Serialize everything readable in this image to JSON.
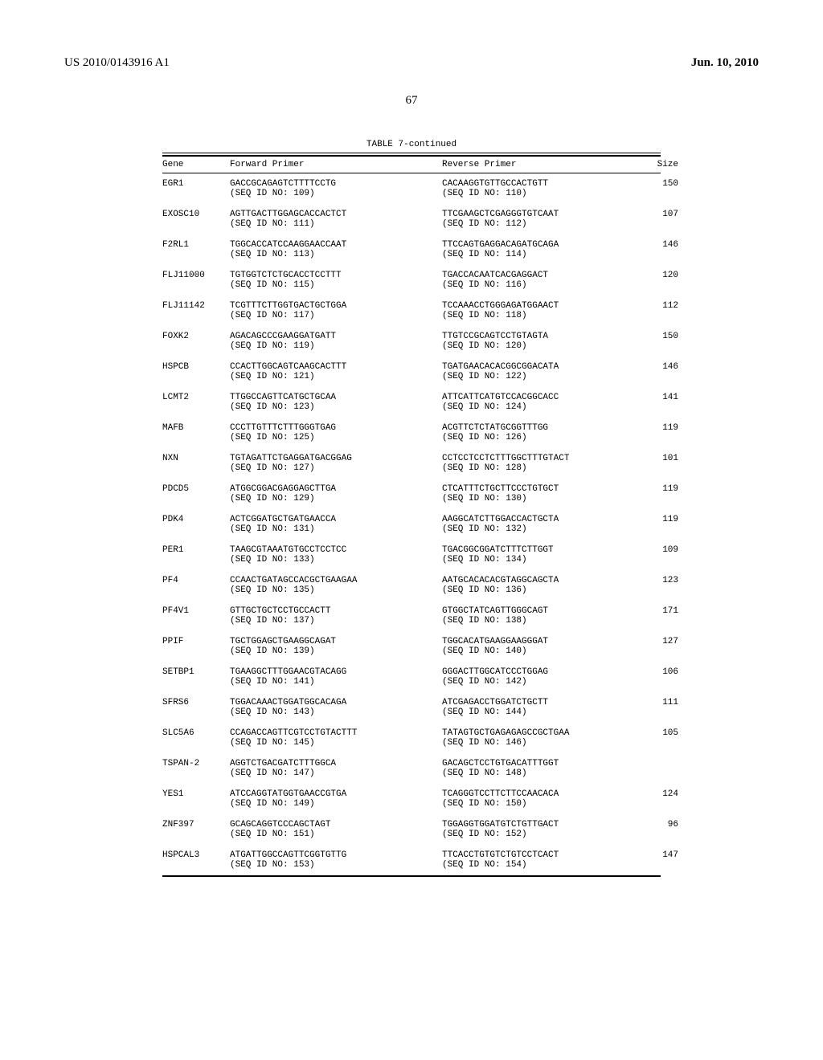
{
  "header": {
    "pub_number": "US 2010/0143916 A1",
    "pub_date": "Jun. 10, 2010"
  },
  "page_number": "67",
  "table": {
    "title": "TABLE 7-continued",
    "columns": {
      "gene": "Gene",
      "fwd": "Forward Primer",
      "rev": "Reverse Primer",
      "size": "Size"
    },
    "rows": [
      {
        "gene": "EGR1",
        "fwd_seq": "GACCGCAGAGTCTTTTCCTG",
        "fwd_id": "109",
        "rev_seq": "CACAAGGTGTTGCCACTGTT",
        "rev_id": "110",
        "size": "150"
      },
      {
        "gene": "EXOSC10",
        "fwd_seq": "AGTTGACTTGGAGCACCACTCT",
        "fwd_id": "111",
        "rev_seq": "TTCGAAGCTCGAGGGTGTCAAT",
        "rev_id": "112",
        "size": "107"
      },
      {
        "gene": "F2RL1",
        "fwd_seq": "TGGCACCATCCAAGGAACCAAT",
        "fwd_id": "113",
        "rev_seq": "TTCCAGTGAGGACAGATGCAGA",
        "rev_id": "114",
        "size": "146"
      },
      {
        "gene": "FLJ11000",
        "fwd_seq": "TGTGGTCTCTGCACCTCCTTT",
        "fwd_id": "115",
        "rev_seq": "TGACCACAATCACGAGGACT",
        "rev_id": "116",
        "size": "120"
      },
      {
        "gene": "FLJ11142",
        "fwd_seq": "TCGTTTCTTGGTGACTGCTGGA",
        "fwd_id": "117",
        "rev_seq": "TCCAAACCTGGGAGATGGAACT",
        "rev_id": "118",
        "size": "112"
      },
      {
        "gene": "FOXK2",
        "fwd_seq": "AGACAGCCCGAAGGATGATT",
        "fwd_id": "119",
        "rev_seq": "TTGTCCGCAGTCCTGTAGTA",
        "rev_id": "120",
        "size": "150"
      },
      {
        "gene": "HSPCB",
        "fwd_seq": "CCACTTGGCAGTCAAGCACTTT",
        "fwd_id": "121",
        "rev_seq": "TGATGAACACACGGCGGACATA",
        "rev_id": "122",
        "size": "146"
      },
      {
        "gene": "LCMT2",
        "fwd_seq": "TTGGCCAGTTCATGCTGCAA",
        "fwd_id": "123",
        "rev_seq": "ATTCATTCATGTCCACGGCACC",
        "rev_id": "124",
        "size": "141"
      },
      {
        "gene": "MAFB",
        "fwd_seq": "CCCTTGTTTCTTTGGGTGAG",
        "fwd_id": "125",
        "rev_seq": "ACGTTCTCTATGCGGTTTGG",
        "rev_id": "126",
        "size": "119"
      },
      {
        "gene": "NXN",
        "fwd_seq": "TGTAGATTCTGAGGATGACGGAG",
        "fwd_id": "127",
        "rev_seq": "CCTCCTCCTCTTTGGCTTTGTACT",
        "rev_id": "128",
        "size": "101"
      },
      {
        "gene": "PDCD5",
        "fwd_seq": "ATGGCGGACGAGGAGCTTGA",
        "fwd_id": "129",
        "rev_seq": "CTCATTTCTGCTTCCCTGTGCT",
        "rev_id": "130",
        "size": "119"
      },
      {
        "gene": "PDK4",
        "fwd_seq": "ACTCGGATGCTGATGAACCA",
        "fwd_id": "131",
        "rev_seq": "AAGGCATCTTGGACCACTGCTA",
        "rev_id": "132",
        "size": "119"
      },
      {
        "gene": "PER1",
        "fwd_seq": "TAAGCGTAAATGTGCCTCCTCC",
        "fwd_id": "133",
        "rev_seq": "TGACGGCGGATCTTTCTTGGT",
        "rev_id": "134",
        "size": "109"
      },
      {
        "gene": "PF4",
        "fwd_seq": "CCAACTGATAGCCACGCTGAAGAA",
        "fwd_id": "135",
        "rev_seq": "AATGCACACACGTAGGCAGCTA",
        "rev_id": "136",
        "size": "123"
      },
      {
        "gene": "PF4V1",
        "fwd_seq": "GTTGCTGCTCCTGCCACTT",
        "fwd_id": "137",
        "rev_seq": "GTGGCTATCAGTTGGGCAGT",
        "rev_id": "138",
        "size": "171"
      },
      {
        "gene": "PPIF",
        "fwd_seq": "TGCTGGAGCTGAAGGCAGAT",
        "fwd_id": "139",
        "rev_seq": "TGGCACATGAAGGAAGGGAT",
        "rev_id": "140",
        "size": "127"
      },
      {
        "gene": "SETBP1",
        "fwd_seq": "TGAAGGCTTTGGAACGTACAGG",
        "fwd_id": "141",
        "rev_seq": "GGGACTTGGCATCCCTGGAG",
        "rev_id": "142",
        "size": "106"
      },
      {
        "gene": "SFRS6",
        "fwd_seq": "TGGACAAACTGGATGGCACAGA",
        "fwd_id": "143",
        "rev_seq": "ATCGAGACCTGGATCTGCTT",
        "rev_id": "144",
        "size": "111"
      },
      {
        "gene": "SLC5A6",
        "fwd_seq": "CCAGACCAGTTCGTCCTGTACTTT",
        "fwd_id": "145",
        "rev_seq": "TATAGTGCTGAGAGAGCCGCTGAA",
        "rev_id": "146",
        "size": "105"
      },
      {
        "gene": "TSPAN-2",
        "fwd_seq": "AGGTCTGACGATCTTTGGCA",
        "fwd_id": "147",
        "rev_seq": "GACAGCTCCTGTGACATTTGGT",
        "rev_id": "148",
        "size": ""
      },
      {
        "gene": "YES1",
        "fwd_seq": "ATCCAGGTATGGTGAACCGTGA",
        "fwd_id": "149",
        "rev_seq": "TCAGGGTCCTTCTTCCAACACA",
        "rev_id": "150",
        "size": "124"
      },
      {
        "gene": "ZNF397",
        "fwd_seq": "GCAGCAGGTCCCAGCTAGT",
        "fwd_id": "151",
        "rev_seq": "TGGAGGTGGATGTCTGTTGACT",
        "rev_id": "152",
        "size": "96"
      },
      {
        "gene": "HSPCAL3",
        "fwd_seq": "ATGATTGGCCAGTTCGGTGTTG",
        "fwd_id": "153",
        "rev_seq": "TTCACCTGTGTCTGTCCTCACT",
        "rev_id": "154",
        "size": "147"
      }
    ]
  }
}
